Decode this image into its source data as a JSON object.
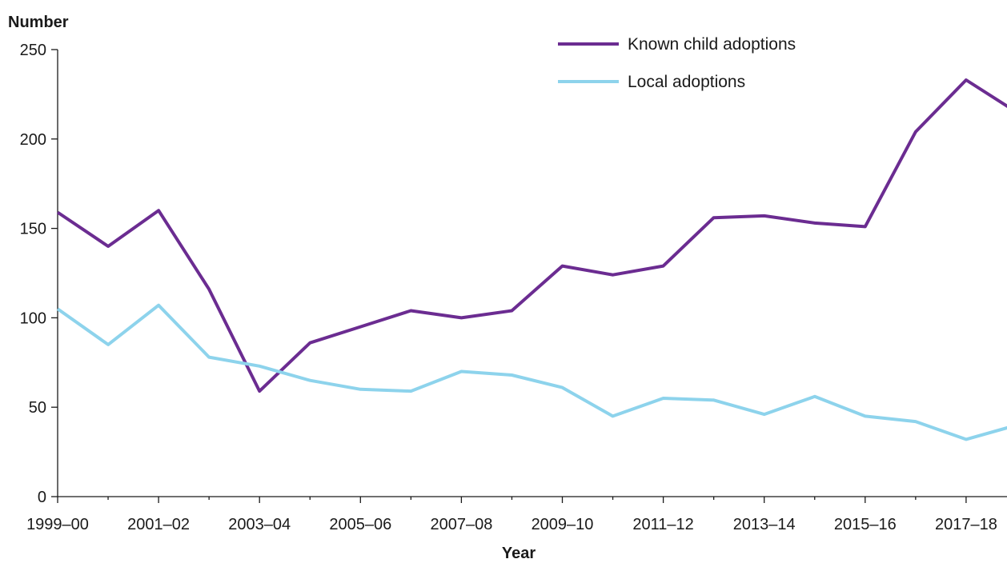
{
  "chart_data": {
    "type": "line",
    "ylabel": "Number",
    "xlabel": "Year",
    "ylim": [
      0,
      250
    ],
    "y_ticks": [
      "0",
      "50",
      "100",
      "150",
      "200",
      "250"
    ],
    "x_tick_labels": [
      "1999–00",
      "2001–02",
      "2003–04",
      "2005–06",
      "2007–08",
      "2009–10",
      "2011–12",
      "2013–14",
      "2015–16",
      "2017–18"
    ],
    "categories": [
      "1999–00",
      "2000–01",
      "2001–02",
      "2002–03",
      "2003–04",
      "2004–05",
      "2005–06",
      "2006–07",
      "2007–08",
      "2008–09",
      "2009–10",
      "2010–11",
      "2011–12",
      "2012–13",
      "2013–14",
      "2014–15",
      "2015–16",
      "2016–17",
      "2017–18",
      "2018–19"
    ],
    "series": [
      {
        "name": "Known child adoptions",
        "color": "#6b2c91",
        "values": [
          159,
          140,
          160,
          116,
          59,
          86,
          95,
          104,
          100,
          104,
          129,
          124,
          129,
          156,
          157,
          153,
          151,
          204,
          233,
          215
        ]
      },
      {
        "name": "Local adoptions",
        "color": "#8dd3ec",
        "values": [
          105,
          85,
          107,
          78,
          73,
          65,
          60,
          59,
          70,
          68,
          61,
          45,
          55,
          54,
          46,
          56,
          45,
          42,
          32,
          40
        ]
      }
    ],
    "legend_position": "top-right",
    "grid": false
  }
}
